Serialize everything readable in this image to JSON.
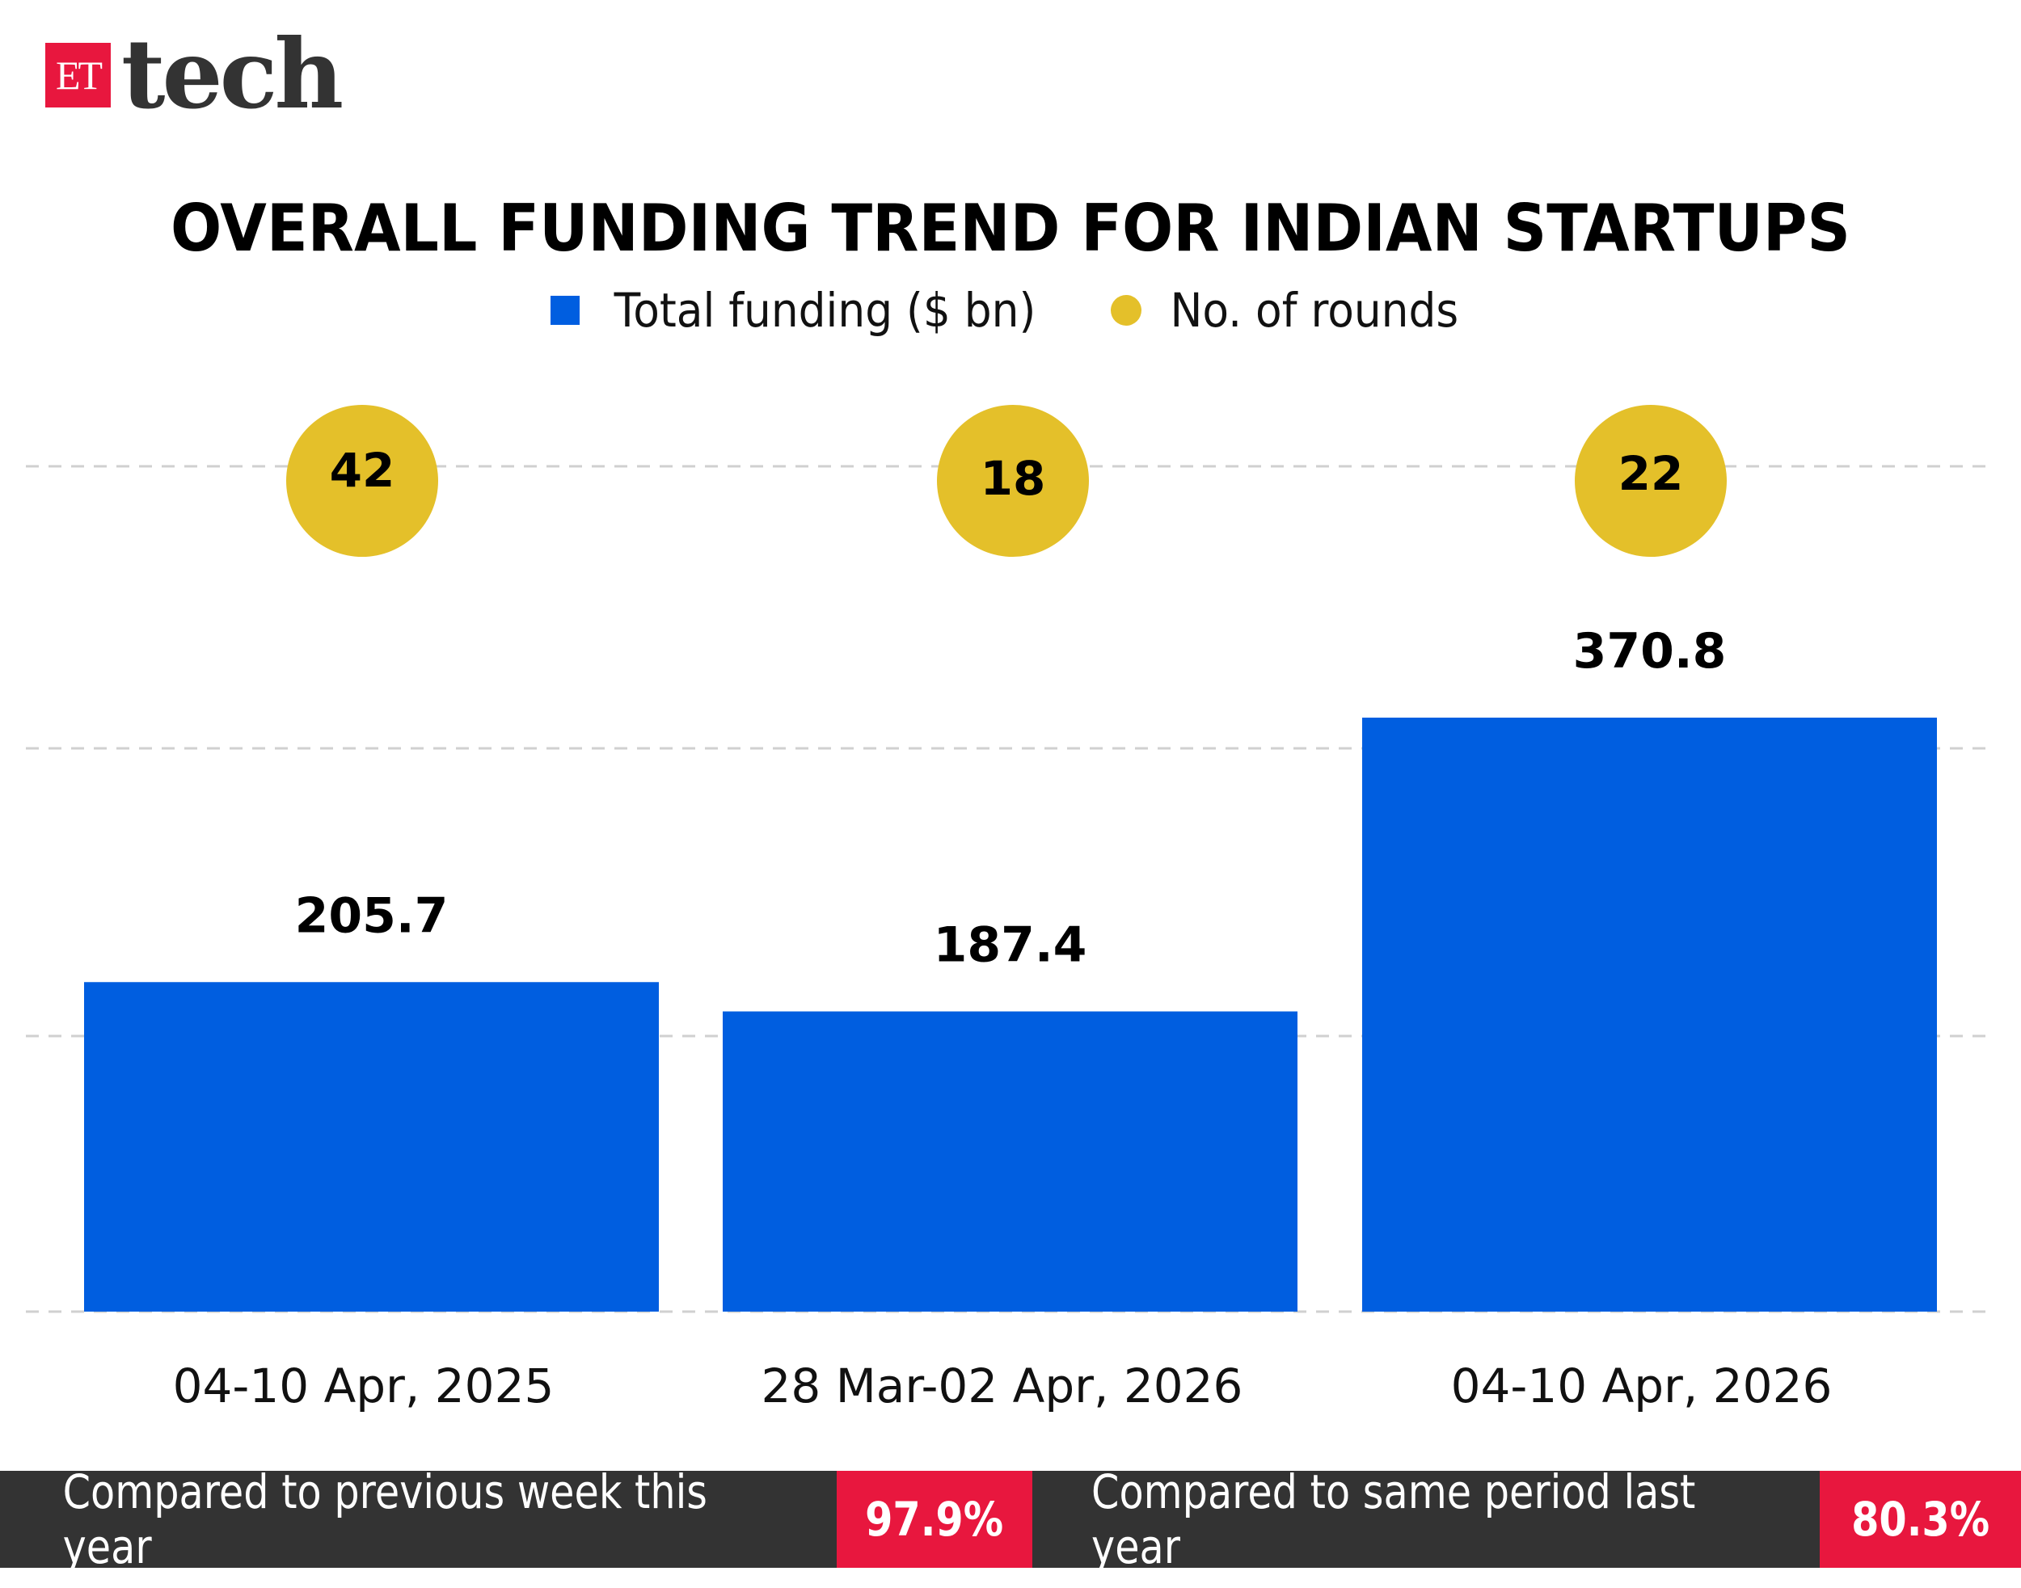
{
  "logo": {
    "box": "ET",
    "text": "tech"
  },
  "colors": {
    "bar": "#005ee0",
    "rounds": "#e4c02a",
    "accent": "#e8173e",
    "footer": "#333333"
  },
  "chart_data": {
    "type": "bar",
    "title": "OVERALL FUNDING TREND FOR INDIAN STARTUPS",
    "categories": [
      "04-10 Apr, 2025",
      "28 Mar-02 Apr, 2026",
      "04-10 Apr, 2026"
    ],
    "series": [
      {
        "name": "Total funding ($ bn)",
        "type": "bar",
        "values": [
          205.7,
          187.4,
          370.8
        ],
        "labels": [
          "205.7",
          "187.4",
          "370.8"
        ]
      },
      {
        "name": "No. of rounds",
        "type": "marker",
        "values": [
          42,
          18,
          22
        ],
        "labels": [
          "42",
          "18",
          "22"
        ]
      }
    ],
    "legend": "top-center",
    "grid": true,
    "ylim": [
      0,
      370.8
    ]
  },
  "footer": {
    "items": [
      {
        "caption": "Compared to previous week this year",
        "value": "97.9%"
      },
      {
        "caption": "Compared to same period last year",
        "value": "80.3%"
      }
    ]
  }
}
